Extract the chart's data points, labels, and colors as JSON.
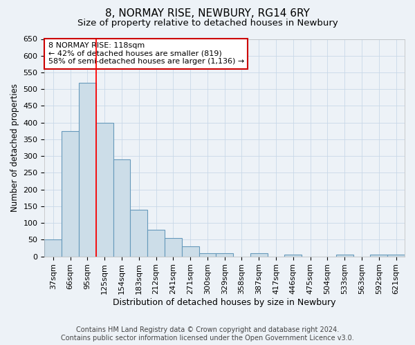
{
  "title": "8, NORMAY RISE, NEWBURY, RG14 6RY",
  "subtitle": "Size of property relative to detached houses in Newbury",
  "xlabel": "Distribution of detached houses by size in Newbury",
  "ylabel": "Number of detached properties",
  "footer_line1": "Contains HM Land Registry data © Crown copyright and database right 2024.",
  "footer_line2": "Contains public sector information licensed under the Open Government Licence v3.0.",
  "bar_labels": [
    "37sqm",
    "66sqm",
    "95sqm",
    "125sqm",
    "154sqm",
    "183sqm",
    "212sqm",
    "241sqm",
    "271sqm",
    "300sqm",
    "329sqm",
    "358sqm",
    "387sqm",
    "417sqm",
    "446sqm",
    "475sqm",
    "504sqm",
    "533sqm",
    "563sqm",
    "592sqm",
    "621sqm"
  ],
  "bar_values": [
    50,
    375,
    520,
    400,
    290,
    140,
    80,
    55,
    30,
    10,
    10,
    0,
    10,
    0,
    5,
    0,
    0,
    5,
    0,
    5,
    5
  ],
  "bar_color": "#ccdde8",
  "bar_edge_color": "#6699bb",
  "grid_color": "#c8d8e8",
  "background_color": "#edf2f7",
  "red_line_x": 2.5,
  "annotation_text": "8 NORMAY RISE: 118sqm\n← 42% of detached houses are smaller (819)\n58% of semi-detached houses are larger (1,136) →",
  "annotation_box_color": "#ffffff",
  "annotation_box_edge": "#cc0000",
  "ylim": [
    0,
    650
  ],
  "yticks": [
    0,
    50,
    100,
    150,
    200,
    250,
    300,
    350,
    400,
    450,
    500,
    550,
    600,
    650
  ],
  "title_fontsize": 11,
  "subtitle_fontsize": 9.5,
  "xlabel_fontsize": 9,
  "ylabel_fontsize": 8.5,
  "tick_fontsize": 8,
  "annotation_fontsize": 8,
  "footer_fontsize": 7
}
